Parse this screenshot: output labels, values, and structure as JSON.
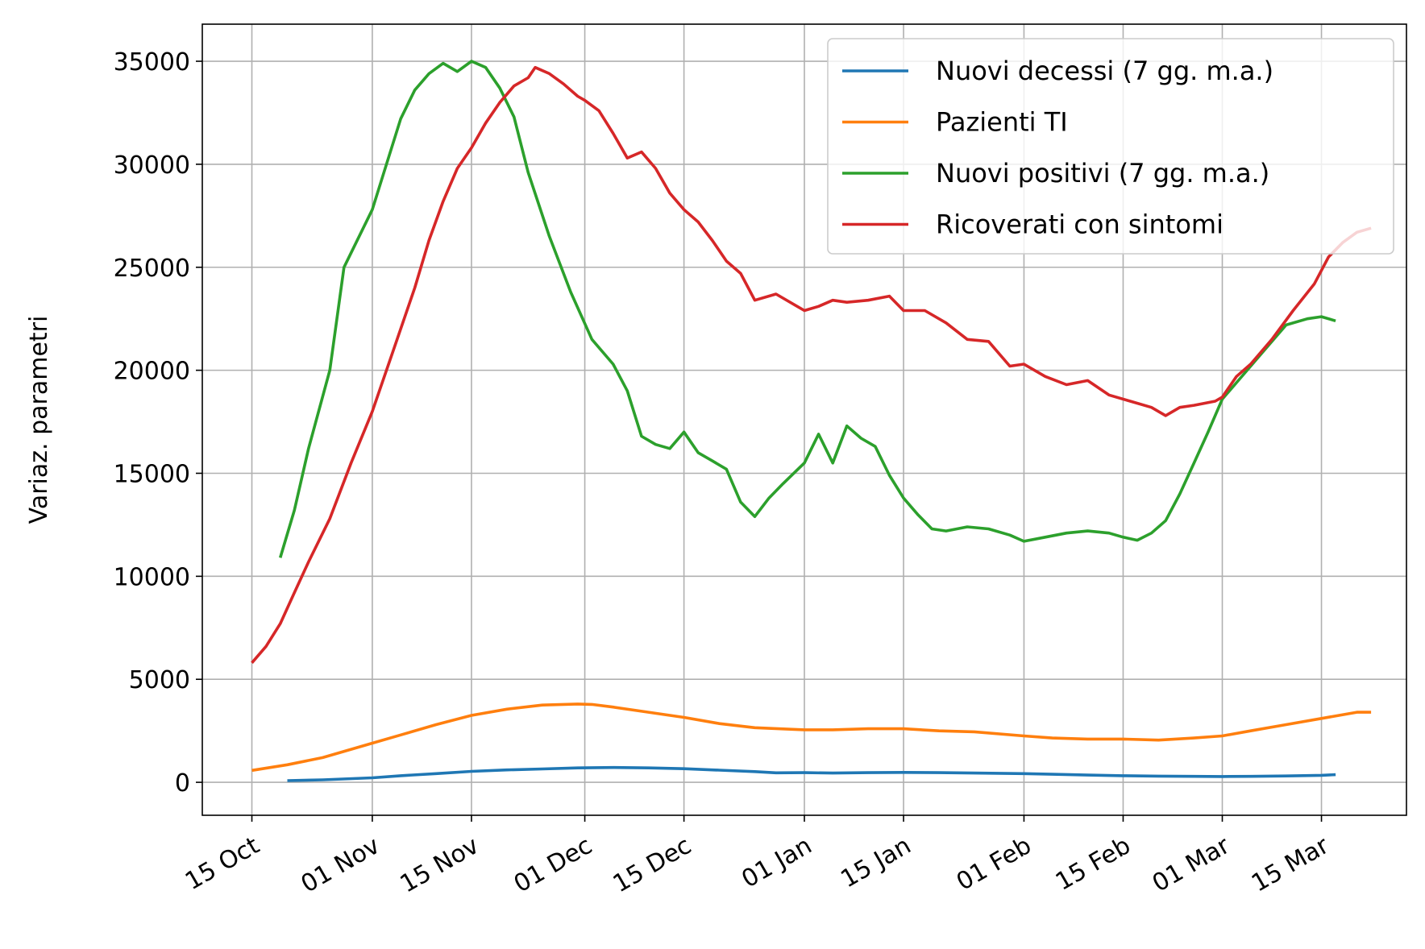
{
  "chart_data": {
    "type": "line",
    "title": "",
    "xlabel": "",
    "ylabel": "Variaz. parametri",
    "x_start": "2020-10-15",
    "xlim": [
      "2020-10-08",
      "2021-03-27"
    ],
    "ylim": [
      -1600,
      36800
    ],
    "grid": true,
    "legend_position": "top-right",
    "y_ticks": [
      0,
      5000,
      10000,
      15000,
      20000,
      25000,
      30000,
      35000
    ],
    "x_ticks": [
      {
        "date": "2020-10-15",
        "label": "15 Oct"
      },
      {
        "date": "2020-11-01",
        "label": "01 Nov"
      },
      {
        "date": "2020-11-15",
        "label": "15 Nov"
      },
      {
        "date": "2020-12-01",
        "label": "01 Dec"
      },
      {
        "date": "2020-12-15",
        "label": "15 Dec"
      },
      {
        "date": "2021-01-01",
        "label": "01 Jan"
      },
      {
        "date": "2021-01-15",
        "label": "15 Jan"
      },
      {
        "date": "2021-02-01",
        "label": "01 Feb"
      },
      {
        "date": "2021-02-15",
        "label": "15 Feb"
      },
      {
        "date": "2021-03-01",
        "label": "01 Mar"
      },
      {
        "date": "2021-03-15",
        "label": "15 Mar"
      }
    ],
    "series": [
      {
        "name": "Nuovi decessi (7 gg. m.a.)",
        "color": "#1f77b4",
        "points": [
          [
            "2020-10-20",
            80
          ],
          [
            "2020-10-25",
            120
          ],
          [
            "2020-11-01",
            220
          ],
          [
            "2020-11-05",
            320
          ],
          [
            "2020-11-10",
            420
          ],
          [
            "2020-11-15",
            530
          ],
          [
            "2020-11-20",
            600
          ],
          [
            "2020-11-25",
            650
          ],
          [
            "2020-11-30",
            700
          ],
          [
            "2020-12-05",
            720
          ],
          [
            "2020-12-10",
            700
          ],
          [
            "2020-12-15",
            660
          ],
          [
            "2020-12-20",
            590
          ],
          [
            "2020-12-25",
            520
          ],
          [
            "2020-12-28",
            460
          ],
          [
            "2021-01-01",
            470
          ],
          [
            "2021-01-05",
            450
          ],
          [
            "2021-01-10",
            470
          ],
          [
            "2021-01-15",
            480
          ],
          [
            "2021-01-20",
            470
          ],
          [
            "2021-01-25",
            450
          ],
          [
            "2021-02-01",
            420
          ],
          [
            "2021-02-05",
            390
          ],
          [
            "2021-02-10",
            350
          ],
          [
            "2021-02-15",
            320
          ],
          [
            "2021-02-20",
            300
          ],
          [
            "2021-02-25",
            290
          ],
          [
            "2021-03-01",
            280
          ],
          [
            "2021-03-05",
            290
          ],
          [
            "2021-03-10",
            310
          ],
          [
            "2021-03-15",
            340
          ],
          [
            "2021-03-17",
            370
          ]
        ]
      },
      {
        "name": "Pazienti TI",
        "color": "#ff7f0e",
        "points": [
          [
            "2020-10-15",
            580
          ],
          [
            "2020-10-20",
            850
          ],
          [
            "2020-10-25",
            1200
          ],
          [
            "2020-11-01",
            1900
          ],
          [
            "2020-11-05",
            2300
          ],
          [
            "2020-11-10",
            2800
          ],
          [
            "2020-11-15",
            3250
          ],
          [
            "2020-11-20",
            3550
          ],
          [
            "2020-11-25",
            3750
          ],
          [
            "2020-11-30",
            3800
          ],
          [
            "2020-12-02",
            3780
          ],
          [
            "2020-12-05",
            3650
          ],
          [
            "2020-12-10",
            3400
          ],
          [
            "2020-12-15",
            3150
          ],
          [
            "2020-12-20",
            2850
          ],
          [
            "2020-12-25",
            2650
          ],
          [
            "2021-01-01",
            2550
          ],
          [
            "2021-01-05",
            2550
          ],
          [
            "2021-01-10",
            2600
          ],
          [
            "2021-01-15",
            2600
          ],
          [
            "2021-01-20",
            2500
          ],
          [
            "2021-01-25",
            2450
          ],
          [
            "2021-02-01",
            2250
          ],
          [
            "2021-02-05",
            2150
          ],
          [
            "2021-02-10",
            2100
          ],
          [
            "2021-02-15",
            2100
          ],
          [
            "2021-02-20",
            2050
          ],
          [
            "2021-02-25",
            2150
          ],
          [
            "2021-03-01",
            2250
          ],
          [
            "2021-03-05",
            2500
          ],
          [
            "2021-03-10",
            2800
          ],
          [
            "2021-03-15",
            3100
          ],
          [
            "2021-03-20",
            3400
          ],
          [
            "2021-03-22",
            3400
          ]
        ]
      },
      {
        "name": "Nuovi positivi (7 gg. m.a.)",
        "color": "#2ca02c",
        "points": [
          [
            "2020-10-19",
            10900
          ],
          [
            "2020-10-21",
            13200
          ],
          [
            "2020-10-23",
            16200
          ],
          [
            "2020-10-26",
            20000
          ],
          [
            "2020-10-28",
            25000
          ],
          [
            "2020-11-01",
            27800
          ],
          [
            "2020-11-03",
            30000
          ],
          [
            "2020-11-05",
            32200
          ],
          [
            "2020-11-07",
            33600
          ],
          [
            "2020-11-09",
            34400
          ],
          [
            "2020-11-11",
            34900
          ],
          [
            "2020-11-13",
            34500
          ],
          [
            "2020-11-15",
            35000
          ],
          [
            "2020-11-17",
            34700
          ],
          [
            "2020-11-19",
            33700
          ],
          [
            "2020-11-21",
            32300
          ],
          [
            "2020-11-23",
            29600
          ],
          [
            "2020-11-26",
            26500
          ],
          [
            "2020-11-29",
            23800
          ],
          [
            "2020-12-02",
            21500
          ],
          [
            "2020-12-05",
            20300
          ],
          [
            "2020-12-07",
            19000
          ],
          [
            "2020-12-09",
            16800
          ],
          [
            "2020-12-11",
            16400
          ],
          [
            "2020-12-13",
            16200
          ],
          [
            "2020-12-15",
            17000
          ],
          [
            "2020-12-17",
            16000
          ],
          [
            "2020-12-19",
            15600
          ],
          [
            "2020-12-21",
            15200
          ],
          [
            "2020-12-23",
            13600
          ],
          [
            "2020-12-25",
            12900
          ],
          [
            "2020-12-27",
            13800
          ],
          [
            "2020-12-29",
            14500
          ],
          [
            "2021-01-01",
            15500
          ],
          [
            "2021-01-03",
            16900
          ],
          [
            "2021-01-05",
            15500
          ],
          [
            "2021-01-07",
            17300
          ],
          [
            "2021-01-09",
            16700
          ],
          [
            "2021-01-11",
            16300
          ],
          [
            "2021-01-13",
            14900
          ],
          [
            "2021-01-15",
            13800
          ],
          [
            "2021-01-17",
            13000
          ],
          [
            "2021-01-19",
            12300
          ],
          [
            "2021-01-21",
            12200
          ],
          [
            "2021-01-24",
            12400
          ],
          [
            "2021-01-27",
            12300
          ],
          [
            "2021-01-30",
            12000
          ],
          [
            "2021-02-01",
            11700
          ],
          [
            "2021-02-04",
            11900
          ],
          [
            "2021-02-07",
            12100
          ],
          [
            "2021-02-10",
            12200
          ],
          [
            "2021-02-13",
            12100
          ],
          [
            "2021-02-15",
            11900
          ],
          [
            "2021-02-17",
            11750
          ],
          [
            "2021-02-19",
            12100
          ],
          [
            "2021-02-21",
            12700
          ],
          [
            "2021-02-23",
            14000
          ],
          [
            "2021-02-25",
            15500
          ],
          [
            "2021-02-27",
            17000
          ],
          [
            "2021-03-01",
            18600
          ],
          [
            "2021-03-03",
            19400
          ],
          [
            "2021-03-05",
            20200
          ],
          [
            "2021-03-07",
            21000
          ],
          [
            "2021-03-10",
            22200
          ],
          [
            "2021-03-13",
            22500
          ],
          [
            "2021-03-15",
            22600
          ],
          [
            "2021-03-17",
            22400
          ]
        ]
      },
      {
        "name": "Ricoverati con sintomi",
        "color": "#d62728",
        "points": [
          [
            "2020-10-15",
            5800
          ],
          [
            "2020-10-17",
            6600
          ],
          [
            "2020-10-19",
            7700
          ],
          [
            "2020-10-21",
            9200
          ],
          [
            "2020-10-23",
            10700
          ],
          [
            "2020-10-26",
            12800
          ],
          [
            "2020-10-29",
            15500
          ],
          [
            "2020-11-01",
            18000
          ],
          [
            "2020-11-04",
            21000
          ],
          [
            "2020-11-07",
            24000
          ],
          [
            "2020-11-09",
            26300
          ],
          [
            "2020-11-11",
            28200
          ],
          [
            "2020-11-13",
            29800
          ],
          [
            "2020-11-15",
            30800
          ],
          [
            "2020-11-17",
            32000
          ],
          [
            "2020-11-19",
            33000
          ],
          [
            "2020-11-21",
            33800
          ],
          [
            "2020-11-23",
            34200
          ],
          [
            "2020-11-24",
            34700
          ],
          [
            "2020-11-26",
            34400
          ],
          [
            "2020-11-28",
            33900
          ],
          [
            "2020-11-30",
            33300
          ],
          [
            "2020-12-01",
            33100
          ],
          [
            "2020-12-03",
            32600
          ],
          [
            "2020-12-05",
            31500
          ],
          [
            "2020-12-07",
            30300
          ],
          [
            "2020-12-09",
            30600
          ],
          [
            "2020-12-11",
            29800
          ],
          [
            "2020-12-13",
            28600
          ],
          [
            "2020-12-15",
            27800
          ],
          [
            "2020-12-17",
            27200
          ],
          [
            "2020-12-19",
            26300
          ],
          [
            "2020-12-21",
            25300
          ],
          [
            "2020-12-23",
            24700
          ],
          [
            "2020-12-25",
            23400
          ],
          [
            "2020-12-28",
            23700
          ],
          [
            "2021-01-01",
            22900
          ],
          [
            "2021-01-03",
            23100
          ],
          [
            "2021-01-05",
            23400
          ],
          [
            "2021-01-07",
            23300
          ],
          [
            "2021-01-10",
            23400
          ],
          [
            "2021-01-13",
            23600
          ],
          [
            "2021-01-15",
            22900
          ],
          [
            "2021-01-18",
            22900
          ],
          [
            "2021-01-21",
            22300
          ],
          [
            "2021-01-24",
            21500
          ],
          [
            "2021-01-27",
            21400
          ],
          [
            "2021-01-30",
            20200
          ],
          [
            "2021-02-01",
            20300
          ],
          [
            "2021-02-04",
            19700
          ],
          [
            "2021-02-07",
            19300
          ],
          [
            "2021-02-10",
            19500
          ],
          [
            "2021-02-13",
            18800
          ],
          [
            "2021-02-16",
            18500
          ],
          [
            "2021-02-19",
            18200
          ],
          [
            "2021-02-21",
            17800
          ],
          [
            "2021-02-23",
            18200
          ],
          [
            "2021-02-25",
            18300
          ],
          [
            "2021-02-28",
            18500
          ],
          [
            "2021-03-01",
            18700
          ],
          [
            "2021-03-03",
            19700
          ],
          [
            "2021-03-05",
            20300
          ],
          [
            "2021-03-08",
            21500
          ],
          [
            "2021-03-11",
            22900
          ],
          [
            "2021-03-14",
            24200
          ],
          [
            "2021-03-16",
            25500
          ],
          [
            "2021-03-18",
            26200
          ],
          [
            "2021-03-20",
            26700
          ],
          [
            "2021-03-22",
            26900
          ]
        ]
      }
    ]
  }
}
